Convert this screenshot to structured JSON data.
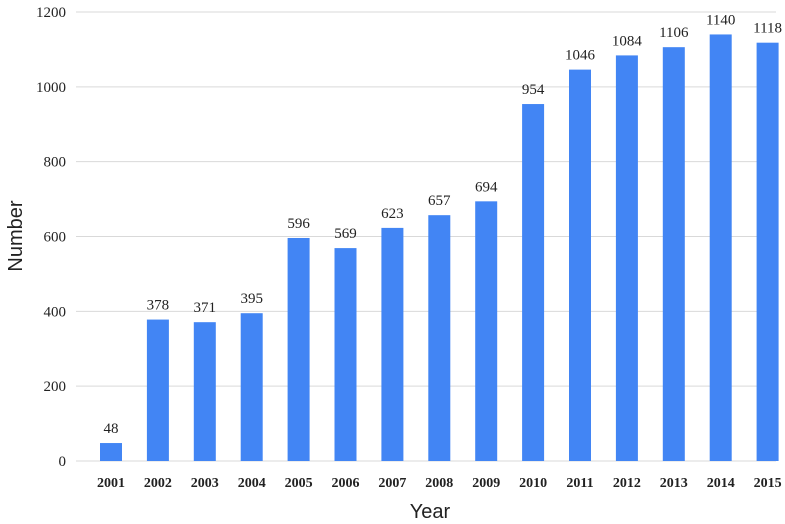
{
  "chart_data": {
    "type": "bar",
    "categories": [
      "2001",
      "2002",
      "2003",
      "2004",
      "2005",
      "2006",
      "2007",
      "2008",
      "2009",
      "2010",
      "2011",
      "2012",
      "2013",
      "2014",
      "2015"
    ],
    "values": [
      48,
      378,
      371,
      395,
      596,
      569,
      623,
      657,
      694,
      954,
      1046,
      1084,
      1106,
      1140,
      1118
    ],
    "xlabel": "Year",
    "ylabel": "Number",
    "ylim": [
      0,
      1200
    ],
    "yticks": [
      0,
      200,
      400,
      600,
      800,
      1000,
      1200
    ],
    "grid": true,
    "bar_color": "#4285f4",
    "data_labels": true
  }
}
